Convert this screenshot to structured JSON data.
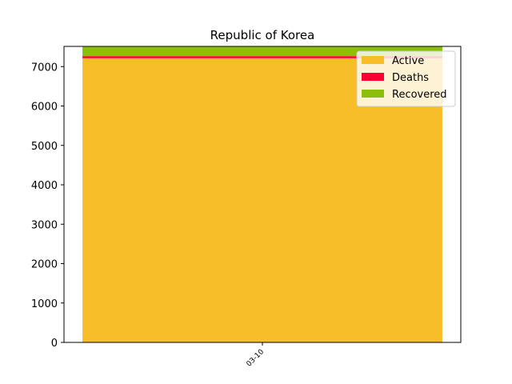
{
  "chart_data": {
    "type": "bar",
    "stacked": true,
    "title": "Republic of Korea",
    "xlabel": "",
    "ylabel": "",
    "categories": [
      "03-10"
    ],
    "series": [
      {
        "name": "Active",
        "values": [
          7212
        ],
        "color": "#f8be2a"
      },
      {
        "name": "Deaths",
        "values": [
          54
        ],
        "color": "#ff0033"
      },
      {
        "name": "Recovered",
        "values": [
          247
        ],
        "color": "#8bbf0b"
      }
    ],
    "ylim": [
      0,
      7513
    ],
    "yticks": [
      0,
      1000,
      2000,
      3000,
      4000,
      5000,
      6000,
      7000
    ],
    "grid": false,
    "legend_position": "top-right"
  }
}
